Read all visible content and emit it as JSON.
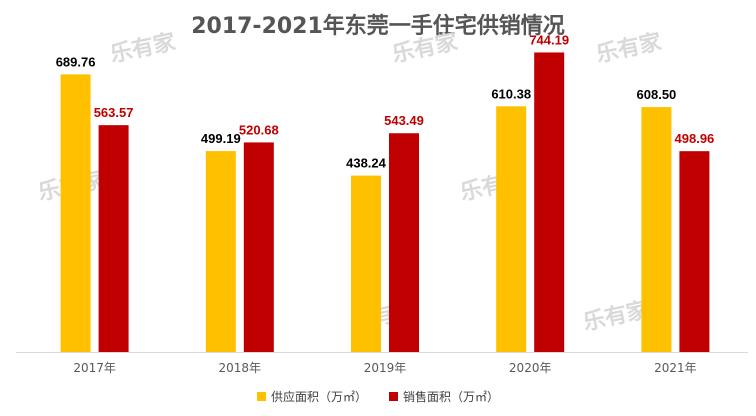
{
  "chart_data": {
    "type": "bar",
    "title": "2017-2021年东莞一手住宅供销情况",
    "categories": [
      "2017年",
      "2018年",
      "2019年",
      "2020年",
      "2021年"
    ],
    "series": [
      {
        "name": "供应面积（万㎡）",
        "color": "#FFC000",
        "label_color": "#000000",
        "values": [
          689.76,
          499.19,
          438.24,
          610.38,
          608.5
        ]
      },
      {
        "name": "销售面积（万㎡）",
        "color": "#C00000",
        "label_color": "#C00000",
        "values": [
          563.57,
          520.68,
          543.49,
          744.19,
          498.96
        ]
      }
    ],
    "value_labels": [
      [
        "689.76",
        "499.19",
        "438.24",
        "610.38",
        "608.50"
      ],
      [
        "563.57",
        "520.68",
        "543.49",
        "744.19",
        "498.96"
      ]
    ],
    "ylim": [
      0,
      800
    ],
    "grid": false,
    "legend": "bottom-center"
  },
  "watermark": "乐有家"
}
